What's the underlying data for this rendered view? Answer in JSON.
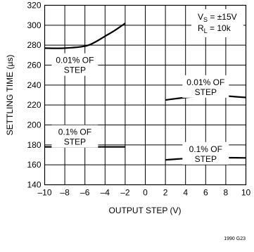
{
  "chart_data": {
    "type": "line",
    "xlabel": "OUTPUT STEP (V)",
    "ylabel": "SETTLING TIME (µs)",
    "xlim": [
      -10,
      10
    ],
    "ylim": [
      140,
      320
    ],
    "xticks": [
      -10,
      -8,
      -6,
      -4,
      -2,
      0,
      2,
      4,
      6,
      8,
      10
    ],
    "xtick_labels": [
      "–10",
      "–8",
      "–6",
      "–4",
      "–2",
      "0",
      "2",
      "4",
      "6",
      "8",
      "10"
    ],
    "yticks": [
      140,
      160,
      180,
      200,
      220,
      240,
      260,
      280,
      300,
      320
    ],
    "ytick_labels": [
      "140",
      "160",
      "180",
      "200",
      "220",
      "240",
      "260",
      "280",
      "300",
      "320"
    ],
    "grid": true,
    "conditions": {
      "vs_prefix": "V",
      "vs_sub": "S",
      "vs_value": " = ±15V",
      "rl_prefix": "R",
      "rl_sub": "L",
      "rl_value": " = 10k"
    },
    "series": [
      {
        "x": [
          -10,
          -8,
          -6,
          -5,
          -4,
          -3,
          -2
        ],
        "y": [
          277,
          277,
          279,
          283,
          289,
          295,
          302
        ]
      },
      {
        "x": [
          -10,
          -8,
          -6,
          -4,
          -2
        ],
        "y": [
          178,
          178,
          178,
          178,
          178
        ]
      },
      {
        "x": [
          2,
          4,
          6,
          7,
          8,
          10
        ],
        "y": [
          225,
          227.5,
          229,
          229.3,
          229,
          227.5
        ]
      },
      {
        "x": [
          2,
          4,
          6,
          8,
          10
        ],
        "y": [
          165,
          166.3,
          167,
          167.2,
          167
        ]
      }
    ],
    "annotations": [
      {
        "line1": "0.01% OF",
        "line2": "STEP",
        "x": -7,
        "y": 262
      },
      {
        "line1": "0.1% OF",
        "line2": "STEP",
        "x": -7,
        "y": 190
      },
      {
        "line1": "0.01% OF",
        "line2": "STEP",
        "x": 6,
        "y": 240
      },
      {
        "line1": "0.1% OF",
        "line2": "STEP",
        "x": 6,
        "y": 173
      }
    ],
    "figure_id": "1990 G23"
  }
}
